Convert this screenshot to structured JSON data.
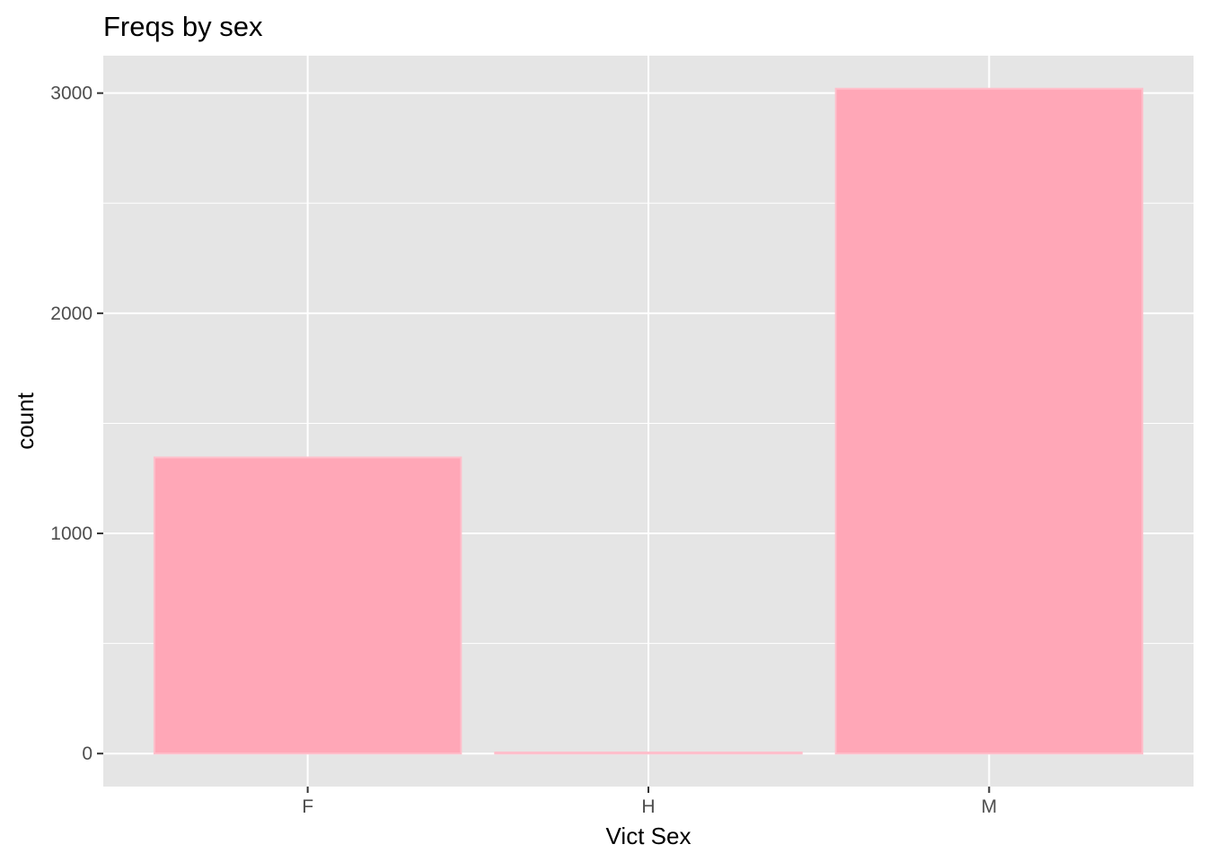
{
  "chart_data": {
    "type": "bar",
    "title": "Freqs by sex",
    "xlabel": "Vict Sex",
    "ylabel": "count",
    "categories": [
      "F",
      "H",
      "M"
    ],
    "values": [
      1345,
      5,
      3020
    ],
    "ylim": [
      -150,
      3170
    ],
    "yticks": [
      0,
      1000,
      2000,
      3000
    ],
    "ytick_labels": [
      "0",
      "1000",
      "2000",
      "3000"
    ],
    "y_minor_ticks": [
      500,
      1500,
      2500
    ],
    "grid": true,
    "legend": "none",
    "colors": {
      "bar_fill": "#ffa7b7",
      "bar_outline": "#ffbfcb",
      "panel_background": "#e5e5e5",
      "grid": "#ffffff",
      "tick_mark": "#333333"
    }
  }
}
